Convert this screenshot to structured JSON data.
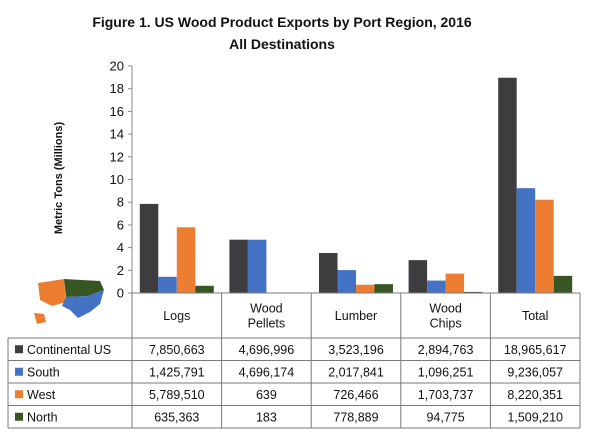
{
  "chart_data": {
    "type": "bar",
    "title": "Figure 1. US Wood Product Exports by Port Region, 2016",
    "subtitle": "All Destinations",
    "ylabel": "Metric Tons (Millions)",
    "xlabel": "",
    "ylim": [
      0,
      20
    ],
    "yticks": [
      "0",
      "2",
      "4",
      "6",
      "8",
      "10",
      "12",
      "14",
      "16",
      "18",
      "20"
    ],
    "categories": [
      "Logs",
      "Wood\nPellets",
      "Lumber",
      "Wood\nChips",
      "Total"
    ],
    "series": [
      {
        "name": "Continental US",
        "color": "#3d3d3f",
        "values": [
          7.850663,
          4.696996,
          3.523196,
          2.894763,
          18.965617
        ],
        "labels": [
          "7,850,663",
          "4,696,996",
          "3,523,196",
          "2,894,763",
          "18,965,617"
        ]
      },
      {
        "name": "South",
        "color": "#4472c4",
        "values": [
          1.425791,
          4.696174,
          2.017841,
          1.096251,
          9.236057
        ],
        "labels": [
          "1,425,791",
          "4,696,174",
          "2,017,841",
          "1,096,251",
          "9,236,057"
        ]
      },
      {
        "name": "West",
        "color": "#ed7d31",
        "values": [
          5.78951,
          0.000639,
          0.726466,
          1.703737,
          8.220351
        ],
        "labels": [
          "5,789,510",
          "639",
          "726,466",
          "1,703,737",
          "8,220,351"
        ]
      },
      {
        "name": "North",
        "color": "#375623",
        "values": [
          0.635363,
          0.000183,
          0.778889,
          0.094775,
          1.50921
        ],
        "labels": [
          "635,363",
          "183",
          "778,889",
          "94,775",
          "1,509,210"
        ]
      }
    ],
    "legend": "data-table",
    "grid": false,
    "map_icon_colors": {
      "west": "#ed7d31",
      "north": "#375623",
      "south": "#4472c4"
    }
  }
}
